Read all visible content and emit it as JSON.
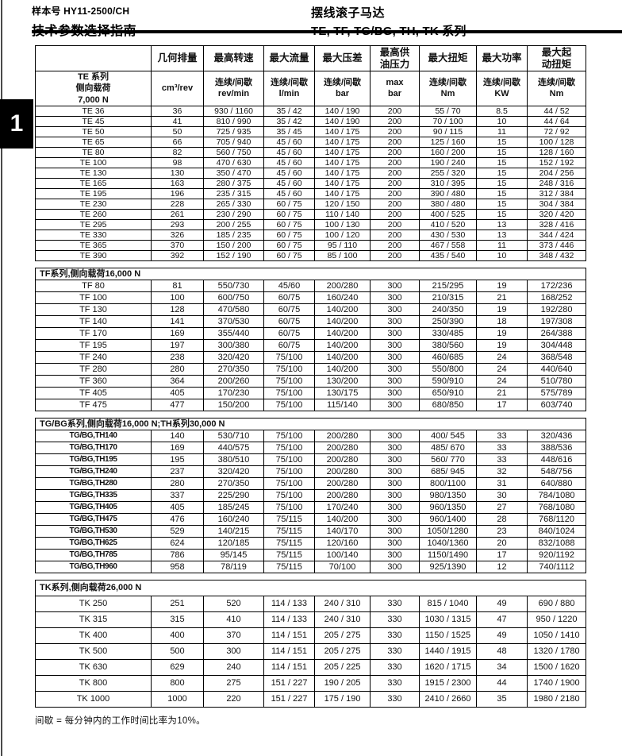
{
  "header": {
    "doc_number": "样本号 HY11-2500/CH",
    "doc_title": "技术参数选择指南",
    "product_name": "摆线滚子马达",
    "series_line": "TE, TF, TG/BG, TH, TK 系列"
  },
  "sidebar": {
    "chapter_number": "1"
  },
  "footnote": "间歇 = 每分钟内的工作时间比率为10%。",
  "table": {
    "columns_row1": [
      "",
      "几何排量",
      "最高转速",
      "最大流量",
      "最大压差",
      "最高供\n油压力",
      "最大扭矩",
      "最大功率",
      "最大起\n动扭矩"
    ],
    "columns_row2": [
      "TE 系列\n侧向载荷\n7,000 N",
      "cm³/rev",
      "连续/间歇\nrev/min",
      "连续/间歇\nl/min",
      "连续/间歇\nbar",
      "max\nbar",
      "连续/间歇\nNm",
      "连续/间歇\nKW",
      "连续/间歇\nNm"
    ],
    "sections": [
      {
        "id": "te",
        "title": null,
        "series_note": "TE 系列 侧向载荷 7,000 N",
        "rows": [
          [
            "TE 36",
            "36",
            "930 / 1160",
            "35 / 42",
            "140 / 190",
            "200",
            "55 / 70",
            "8.5",
            "44 / 52"
          ],
          [
            "TE 45",
            "41",
            "810 / 990",
            "35 / 42",
            "140 / 190",
            "200",
            "70 / 100",
            "10",
            "44 / 64"
          ],
          [
            "TE 50",
            "50",
            "725 / 935",
            "35 / 45",
            "140 / 175",
            "200",
            "90 / 115",
            "11",
            "72 / 92"
          ],
          [
            "TE 65",
            "66",
            "705 / 940",
            "45 / 60",
            "140 / 175",
            "200",
            "125 / 160",
            "15",
            "100 / 128"
          ],
          [
            "TE 80",
            "82",
            "560 / 750",
            "45 / 60",
            "140 / 175",
            "200",
            "160 / 200",
            "15",
            "128 / 160"
          ],
          [
            "TE 100",
            "98",
            "470 / 630",
            "45 / 60",
            "140 / 175",
            "200",
            "190 / 240",
            "15",
            "152 / 192"
          ],
          [
            "TE 130",
            "130",
            "350 / 470",
            "45 / 60",
            "140 / 175",
            "200",
            "255 / 320",
            "15",
            "204 / 256"
          ],
          [
            "TE 165",
            "163",
            "280 / 375",
            "45 / 60",
            "140 / 175",
            "200",
            "310 / 395",
            "15",
            "248 / 316"
          ],
          [
            "TE 195",
            "196",
            "235 / 315",
            "45 / 60",
            "140 / 175",
            "200",
            "390 / 480",
            "15",
            "312 / 384"
          ],
          [
            "TE 230",
            "228",
            "265 / 330",
            "60 / 75",
            "120 / 150",
            "200",
            "380 / 480",
            "15",
            "304 / 384"
          ],
          [
            "TE 260",
            "261",
            "230 / 290",
            "60 / 75",
            "110 / 140",
            "200",
            "400 / 525",
            "15",
            "320 / 420"
          ],
          [
            "TE 295",
            "293",
            "200 / 255",
            "60 / 75",
            "100 / 130",
            "200",
            "410 / 520",
            "13",
            "328 / 416"
          ],
          [
            "TE 330",
            "326",
            "185 / 235",
            "60 / 75",
            "100 / 120",
            "200",
            "430 / 530",
            "13",
            "344 / 424"
          ],
          [
            "TE 365",
            "370",
            "150 / 200",
            "60 / 75",
            "95 / 110",
            "200",
            "467 / 558",
            "11",
            "373 / 446"
          ],
          [
            "TE 390",
            "392",
            "152 / 190",
            "60 / 75",
            "85 / 100",
            "200",
            "435 / 540",
            "10",
            "348 / 432"
          ]
        ]
      },
      {
        "id": "tf",
        "title": "TF系列,侧向载荷16,000 N",
        "rows": [
          [
            "TF 80",
            "81",
            "550/730",
            "45/60",
            "200/280",
            "300",
            "215/295",
            "19",
            "172/236"
          ],
          [
            "TF 100",
            "100",
            "600/750",
            "60/75",
            "160/240",
            "300",
            "210/315",
            "21",
            "168/252"
          ],
          [
            "TF 130",
            "128",
            "470/580",
            "60/75",
            "140/200",
            "300",
            "240/350",
            "19",
            "192/280"
          ],
          [
            "TF 140",
            "141",
            "370/530",
            "60/75",
            "140/200",
            "300",
            "250/390",
            "18",
            "197/308"
          ],
          [
            "TF 170",
            "169",
            "355/440",
            "60/75",
            "140/200",
            "300",
            "330/485",
            "19",
            "264/388"
          ],
          [
            "TF 195",
            "197",
            "300/380",
            "60/75",
            "140/200",
            "300",
            "380/560",
            "19",
            "304/448"
          ],
          [
            "TF 240",
            "238",
            "320/420",
            "75/100",
            "140/200",
            "300",
            "460/685",
            "24",
            "368/548"
          ],
          [
            "TF 280",
            "280",
            "270/350",
            "75/100",
            "140/200",
            "300",
            "550/800",
            "24",
            "440/640"
          ],
          [
            "TF 360",
            "364",
            "200/260",
            "75/100",
            "130/200",
            "300",
            "590/910",
            "24",
            "510/780"
          ],
          [
            "TF 405",
            "405",
            "170/230",
            "75/100",
            "130/175",
            "300",
            "650/910",
            "21",
            "575/789"
          ],
          [
            "TF 475",
            "477",
            "150/200",
            "75/100",
            "115/140",
            "300",
            "680/850",
            "17",
            "603/740"
          ]
        ]
      },
      {
        "id": "tgbg-th",
        "title": "TG/BG系列,侧向载荷16,000 N;TH系列30,000 N",
        "rows": [
          [
            "TG/BG,TH140",
            "140",
            "530/710",
            "75/100",
            "200/280",
            "300",
            "400/ 545",
            "33",
            "320/436"
          ],
          [
            "TG/BG,TH170",
            "169",
            "440/575",
            "75/100",
            "200/280",
            "300",
            "485/ 670",
            "33",
            "388/536"
          ],
          [
            "TG/BG,TH195",
            "195",
            "380/510",
            "75/100",
            "200/280",
            "300",
            "560/ 770",
            "33",
            "448/616"
          ],
          [
            "TG/BG,TH240",
            "237",
            "320/420",
            "75/100",
            "200/280",
            "300",
            "685/ 945",
            "32",
            "548/756"
          ],
          [
            "TG/BG,TH280",
            "280",
            "270/350",
            "75/100",
            "200/280",
            "300",
            "800/1100",
            "31",
            "640/880"
          ],
          [
            "TG/BG,TH335",
            "337",
            "225/290",
            "75/100",
            "200/280",
            "300",
            "980/1350",
            "30",
            "784/1080"
          ],
          [
            "TG/BG,TH405",
            "405",
            "185/245",
            "75/100",
            "170/240",
            "300",
            "960/1350",
            "27",
            "768/1080"
          ],
          [
            "TG/BG,TH475",
            "476",
            "160/240",
            "75/115",
            "140/200",
            "300",
            "960/1400",
            "28",
            "768/1120"
          ],
          [
            "TG/BG,TH530",
            "529",
            "140/215",
            "75/115",
            "140/170",
            "300",
            "1050/1280",
            "23",
            "840/1024"
          ],
          [
            "TG/BG,TH625",
            "624",
            "120/185",
            "75/115",
            "120/160",
            "300",
            "1040/1360",
            "20",
            "832/1088"
          ],
          [
            "TG/BG,TH785",
            "786",
            "95/145",
            "75/115",
            "100/140",
            "300",
            "1150/1490",
            "17",
            "920/1192"
          ],
          [
            "TG/BG,TH960",
            "958",
            "78/119",
            "75/115",
            "70/100",
            "300",
            "925/1390",
            "12",
            "740/1112"
          ]
        ]
      },
      {
        "id": "tk",
        "title": "TK系列,侧向载荷26,000 N",
        "rows": [
          [
            "TK 250",
            "251",
            "520",
            "114 / 133",
            "240 / 310",
            "330",
            "815 / 1040",
            "49",
            "690 / 880"
          ],
          [
            "TK 315",
            "315",
            "410",
            "114 / 133",
            "240 / 310",
            "330",
            "1030 / 1315",
            "47",
            "950 / 1220"
          ],
          [
            "TK 400",
            "400",
            "370",
            "114 / 151",
            "205 / 275",
            "330",
            "1150 / 1525",
            "49",
            "1050 / 1410"
          ],
          [
            "TK 500",
            "500",
            "300",
            "114 / 151",
            "205 / 275",
            "330",
            "1440 / 1915",
            "48",
            "1320 / 1780"
          ],
          [
            "TK 630",
            "629",
            "240",
            "114 / 151",
            "205 / 225",
            "330",
            "1620 / 1715",
            "34",
            "1500 / 1620"
          ],
          [
            "TK 800",
            "800",
            "275",
            "151 / 227",
            "190 / 205",
            "330",
            "1915 / 2300",
            "44",
            "1740 / 1900"
          ],
          [
            "TK 1000",
            "1000",
            "220",
            "151 / 227",
            "175 / 190",
            "330",
            "2410 / 2660",
            "35",
            "1980 / 2180"
          ]
        ]
      }
    ]
  }
}
